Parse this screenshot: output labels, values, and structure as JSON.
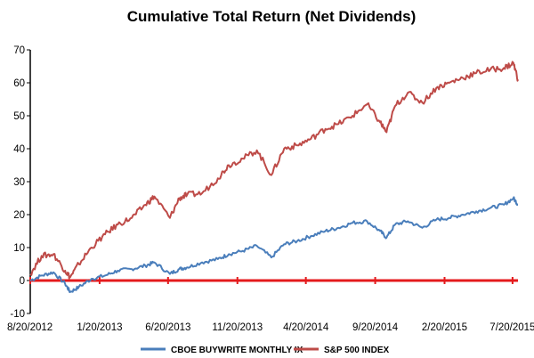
{
  "chart_data": {
    "type": "line",
    "title": "Cumulative Total Return (Net Dividends)",
    "xlabel": "",
    "ylabel": "",
    "ylim": [
      -10,
      70
    ],
    "yticks": [
      -10,
      0,
      10,
      20,
      30,
      40,
      50,
      60,
      70
    ],
    "xlim": [
      "2012-08-20",
      "2015-08-01"
    ],
    "xticks": [
      "8/20/2012",
      "1/20/2013",
      "6/20/2013",
      "11/20/2013",
      "4/20/2014",
      "9/20/2014",
      "2/20/2015",
      "7/20/2015"
    ],
    "xtick_dates": [
      "2012-08-20",
      "2013-01-20",
      "2013-06-20",
      "2013-11-20",
      "2014-04-20",
      "2014-09-20",
      "2015-02-20",
      "2015-07-20"
    ],
    "grid": false,
    "legend": "bottom",
    "zero_line_color": "#e41a1c",
    "series": [
      {
        "name": "CBOE BUYWRITE MONTHLY IX",
        "color": "#4a7ebb",
        "x": [
          "2012-08-20",
          "2012-09-14",
          "2012-10-10",
          "2012-11-05",
          "2012-11-16",
          "2012-12-05",
          "2013-01-02",
          "2013-02-01",
          "2013-03-01",
          "2013-04-01",
          "2013-05-01",
          "2013-05-21",
          "2013-06-24",
          "2013-07-15",
          "2013-08-01",
          "2013-09-03",
          "2013-10-08",
          "2013-11-01",
          "2013-12-02",
          "2014-01-02",
          "2014-02-03",
          "2014-03-03",
          "2014-04-01",
          "2014-05-01",
          "2014-06-02",
          "2014-07-01",
          "2014-08-01",
          "2014-09-02",
          "2014-10-01",
          "2014-10-15",
          "2014-11-03",
          "2014-12-01",
          "2015-01-02",
          "2015-02-02",
          "2015-03-02",
          "2015-04-01",
          "2015-05-01",
          "2015-06-01",
          "2015-07-01",
          "2015-07-22",
          "2015-08-01"
        ],
        "values": [
          0,
          1.5,
          2.5,
          -1.0,
          -3.5,
          -2.0,
          0.5,
          1.5,
          3.0,
          3.5,
          4.5,
          5.5,
          2.0,
          3.5,
          4.0,
          5.5,
          6.5,
          8.0,
          9.0,
          10.5,
          7.0,
          11.0,
          12.0,
          13.5,
          15.0,
          16.0,
          17.5,
          18.0,
          15.0,
          13.0,
          17.0,
          18.0,
          16.0,
          18.5,
          19.0,
          20.0,
          21.0,
          22.0,
          23.0,
          25.0,
          23.0
        ]
      },
      {
        "name": "S&P 500 INDEX",
        "color": "#be4b48",
        "x": [
          "2012-08-20",
          "2012-09-14",
          "2012-10-10",
          "2012-11-05",
          "2012-11-16",
          "2012-12-05",
          "2013-01-02",
          "2013-02-01",
          "2013-03-01",
          "2013-04-01",
          "2013-05-01",
          "2013-05-21",
          "2013-06-24",
          "2013-07-15",
          "2013-08-01",
          "2013-09-03",
          "2013-10-08",
          "2013-11-01",
          "2013-12-02",
          "2014-01-02",
          "2014-02-03",
          "2014-03-03",
          "2014-04-01",
          "2014-05-01",
          "2014-06-02",
          "2014-07-01",
          "2014-08-01",
          "2014-09-02",
          "2014-10-01",
          "2014-10-15",
          "2014-11-03",
          "2014-12-01",
          "2015-01-02",
          "2015-02-02",
          "2015-03-02",
          "2015-04-01",
          "2015-05-01",
          "2015-06-01",
          "2015-07-01",
          "2015-07-22",
          "2015-08-01"
        ],
        "values": [
          2,
          7.5,
          8.0,
          3.0,
          1.0,
          5.0,
          10.0,
          14.0,
          17.0,
          19.0,
          23.0,
          25.5,
          19.0,
          25.0,
          26.0,
          26.5,
          31.0,
          35.0,
          37.0,
          39.5,
          32.0,
          40.0,
          41.0,
          43.0,
          46.0,
          47.5,
          50.0,
          53.5,
          48.0,
          45.0,
          53.0,
          57.0,
          54.0,
          58.5,
          60.0,
          61.5,
          63.0,
          64.0,
          64.5,
          66.0,
          61.0
        ]
      }
    ]
  }
}
